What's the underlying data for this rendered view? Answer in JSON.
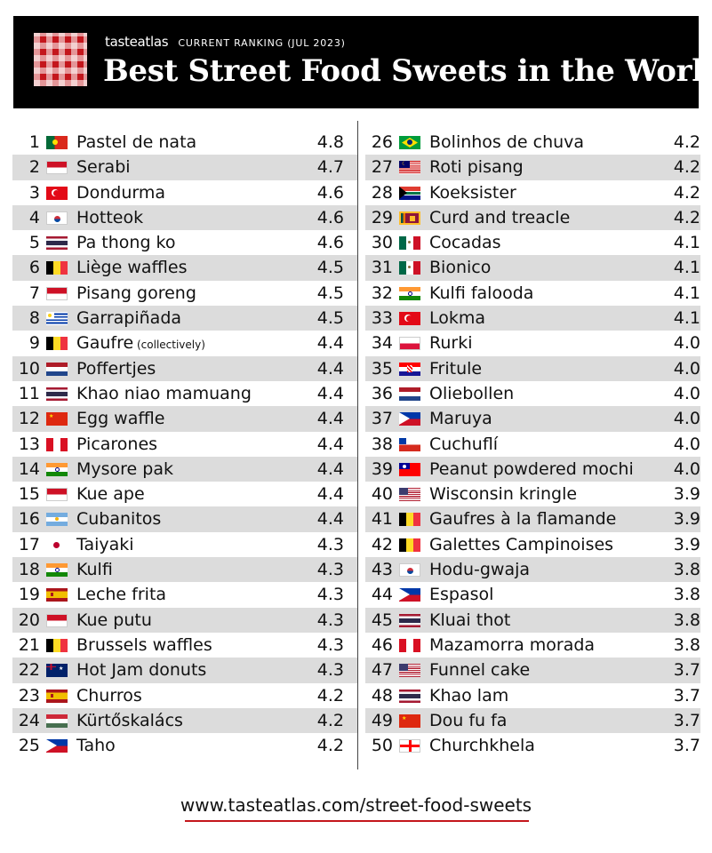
{
  "header": {
    "brand": "tasteatlas",
    "ranking_label": "CURRENT RANKING (JUL 2023)",
    "title": "Best Street Food Sweets in the World"
  },
  "rankings": [
    {
      "rank": "1",
      "flag": "portugal",
      "name": "Pastel de nata",
      "note": "",
      "score": "4.8"
    },
    {
      "rank": "2",
      "flag": "indonesia",
      "name": "Serabi",
      "note": "",
      "score": "4.7"
    },
    {
      "rank": "3",
      "flag": "turkey",
      "name": "Dondurma",
      "note": "",
      "score": "4.6"
    },
    {
      "rank": "4",
      "flag": "south-korea",
      "name": "Hotteok",
      "note": "",
      "score": "4.6"
    },
    {
      "rank": "5",
      "flag": "thailand",
      "name": "Pa thong ko",
      "note": "",
      "score": "4.6"
    },
    {
      "rank": "6",
      "flag": "belgium",
      "name": "Liège waffles",
      "note": "",
      "score": "4.5"
    },
    {
      "rank": "7",
      "flag": "indonesia",
      "name": "Pisang goreng",
      "note": "",
      "score": "4.5"
    },
    {
      "rank": "8",
      "flag": "uruguay",
      "name": "Garrapiñada",
      "note": "",
      "score": "4.5"
    },
    {
      "rank": "9",
      "flag": "belgium",
      "name": "Gaufre",
      "note": "(collectively)",
      "score": "4.4"
    },
    {
      "rank": "10",
      "flag": "netherlands",
      "name": "Poffertjes",
      "note": "",
      "score": "4.4"
    },
    {
      "rank": "11",
      "flag": "thailand",
      "name": "Khao niao mamuang",
      "note": "",
      "score": "4.4"
    },
    {
      "rank": "12",
      "flag": "china",
      "name": "Egg waffle",
      "note": "",
      "score": "4.4"
    },
    {
      "rank": "13",
      "flag": "peru",
      "name": "Picarones",
      "note": "",
      "score": "4.4"
    },
    {
      "rank": "14",
      "flag": "india",
      "name": "Mysore pak",
      "note": "",
      "score": "4.4"
    },
    {
      "rank": "15",
      "flag": "indonesia",
      "name": "Kue ape",
      "note": "",
      "score": "4.4"
    },
    {
      "rank": "16",
      "flag": "argentina",
      "name": "Cubanitos",
      "note": "",
      "score": "4.4"
    },
    {
      "rank": "17",
      "flag": "japan",
      "name": "Taiyaki",
      "note": "",
      "score": "4.3"
    },
    {
      "rank": "18",
      "flag": "india",
      "name": "Kulfi",
      "note": "",
      "score": "4.3"
    },
    {
      "rank": "19",
      "flag": "spain",
      "name": "Leche frita",
      "note": "",
      "score": "4.3"
    },
    {
      "rank": "20",
      "flag": "indonesia",
      "name": "Kue putu",
      "note": "",
      "score": "4.3"
    },
    {
      "rank": "21",
      "flag": "belgium",
      "name": "Brussels waffles",
      "note": "",
      "score": "4.3"
    },
    {
      "rank": "22",
      "flag": "australia",
      "name": "Hot Jam donuts",
      "note": "",
      "score": "4.3"
    },
    {
      "rank": "23",
      "flag": "spain",
      "name": "Churros",
      "note": "",
      "score": "4.2"
    },
    {
      "rank": "24",
      "flag": "hungary",
      "name": "Kürtőskalács",
      "note": "",
      "score": "4.2"
    },
    {
      "rank": "25",
      "flag": "philippines",
      "name": "Taho",
      "note": "",
      "score": "4.2"
    },
    {
      "rank": "26",
      "flag": "brazil",
      "name": "Bolinhos de chuva",
      "note": "",
      "score": "4.2"
    },
    {
      "rank": "27",
      "flag": "malaysia",
      "name": "Roti pisang",
      "note": "",
      "score": "4.2"
    },
    {
      "rank": "28",
      "flag": "south-africa",
      "name": "Koeksister",
      "note": "",
      "score": "4.2"
    },
    {
      "rank": "29",
      "flag": "sri-lanka",
      "name": "Curd and treacle",
      "note": "",
      "score": "4.2"
    },
    {
      "rank": "30",
      "flag": "mexico",
      "name": "Cocadas",
      "note": "",
      "score": "4.1"
    },
    {
      "rank": "31",
      "flag": "mexico",
      "name": "Bionico",
      "note": "",
      "score": "4.1"
    },
    {
      "rank": "32",
      "flag": "india",
      "name": "Kulfi falooda",
      "note": "",
      "score": "4.1"
    },
    {
      "rank": "33",
      "flag": "turkey",
      "name": "Lokma",
      "note": "",
      "score": "4.1"
    },
    {
      "rank": "34",
      "flag": "poland",
      "name": "Rurki",
      "note": "",
      "score": "4.0"
    },
    {
      "rank": "35",
      "flag": "croatia",
      "name": "Fritule",
      "note": "",
      "score": "4.0"
    },
    {
      "rank": "36",
      "flag": "netherlands",
      "name": "Oliebollen",
      "note": "",
      "score": "4.0"
    },
    {
      "rank": "37",
      "flag": "philippines",
      "name": "Maruya",
      "note": "",
      "score": "4.0"
    },
    {
      "rank": "38",
      "flag": "chile",
      "name": "Cuchuflí",
      "note": "",
      "score": "4.0"
    },
    {
      "rank": "39",
      "flag": "taiwan",
      "name": "Peanut powdered mochi",
      "note": "",
      "score": "4.0"
    },
    {
      "rank": "40",
      "flag": "usa",
      "name": "Wisconsin kringle",
      "note": "",
      "score": "3.9"
    },
    {
      "rank": "41",
      "flag": "belgium",
      "name": "Gaufres à la flamande",
      "note": "",
      "score": "3.9"
    },
    {
      "rank": "42",
      "flag": "belgium",
      "name": "Galettes Campinoises",
      "note": "",
      "score": "3.9"
    },
    {
      "rank": "43",
      "flag": "south-korea",
      "name": "Hodu-gwaja",
      "note": "",
      "score": "3.8"
    },
    {
      "rank": "44",
      "flag": "philippines",
      "name": "Espasol",
      "note": "",
      "score": "3.8"
    },
    {
      "rank": "45",
      "flag": "thailand",
      "name": "Kluai thot",
      "note": "",
      "score": "3.8"
    },
    {
      "rank": "46",
      "flag": "peru",
      "name": "Mazamorra morada",
      "note": "",
      "score": "3.8"
    },
    {
      "rank": "47",
      "flag": "usa",
      "name": "Funnel cake",
      "note": "",
      "score": "3.7"
    },
    {
      "rank": "48",
      "flag": "thailand",
      "name": "Khao lam",
      "note": "",
      "score": "3.7"
    },
    {
      "rank": "49",
      "flag": "china",
      "name": "Dou fu fa",
      "note": "",
      "score": "3.7"
    },
    {
      "rank": "50",
      "flag": "georgia",
      "name": "Churchkhela",
      "note": "",
      "score": "3.7"
    }
  ],
  "footer": {
    "url": "www.tasteatlas.com/street-food-sweets"
  },
  "colors": {
    "header_bg": "#000000",
    "accent": "#c4161c",
    "row_shade": "#dcdcdc"
  }
}
